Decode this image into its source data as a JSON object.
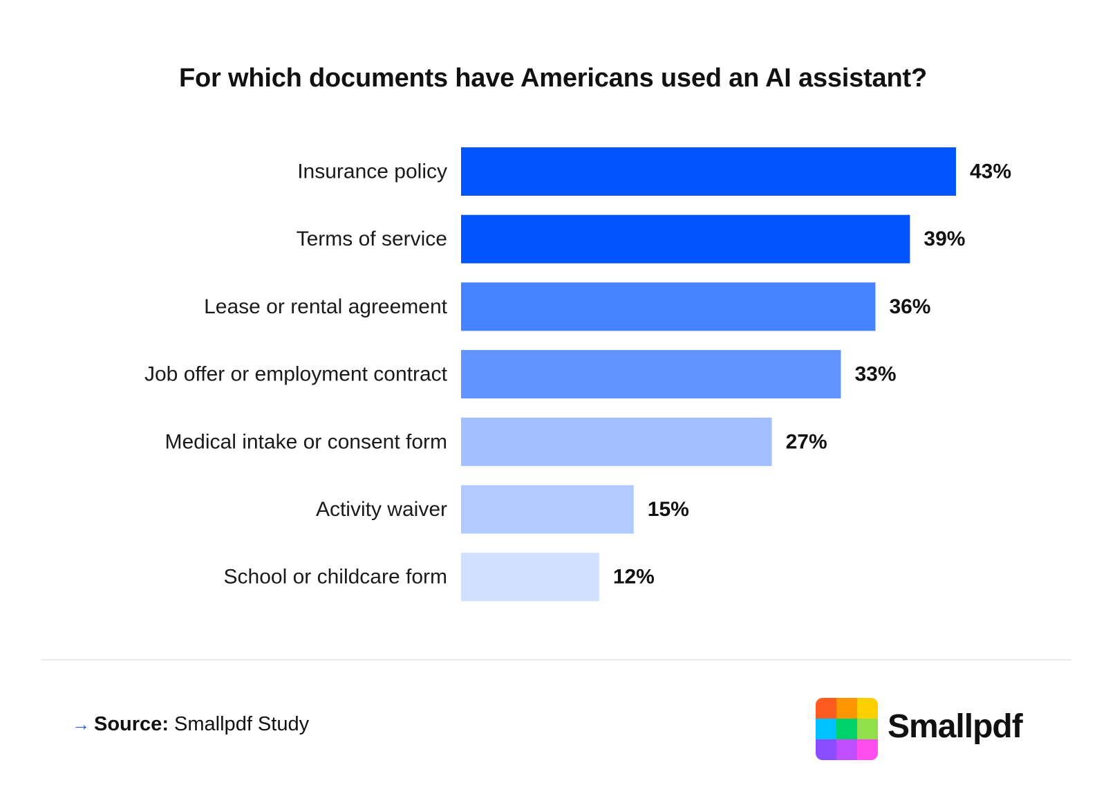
{
  "chart_data": {
    "type": "bar",
    "orientation": "horizontal",
    "title": "For which documents have Americans used an AI assistant?",
    "categories": [
      "Insurance policy",
      "Terms of service",
      "Lease or rental agreement",
      "Job offer or employment contract",
      "Medical intake or consent form",
      "Activity waiver",
      "School or childcare form"
    ],
    "values": [
      43,
      39,
      36,
      33,
      27,
      15,
      12
    ],
    "value_labels": [
      "43%",
      "39%",
      "36%",
      "33%",
      "27%",
      "15%",
      "12%"
    ],
    "bar_colors": [
      "#0055ff",
      "#0055ff",
      "#4683ff",
      "#6194ff",
      "#a2bfff",
      "#b1caff",
      "#d2e0ff"
    ],
    "xlim": [
      0,
      43
    ],
    "grid": false,
    "legend": "none"
  },
  "footer": {
    "source_label": "Source:",
    "source_text": "Smallpdf Study"
  },
  "brand": {
    "name": "Smallpdf",
    "logo_colors": [
      "#ff5a1f",
      "#ff9500",
      "#ffd000",
      "#00c2ff",
      "#00d26a",
      "#8fe04a",
      "#8a4dff",
      "#c04dff",
      "#ff4df0"
    ]
  }
}
